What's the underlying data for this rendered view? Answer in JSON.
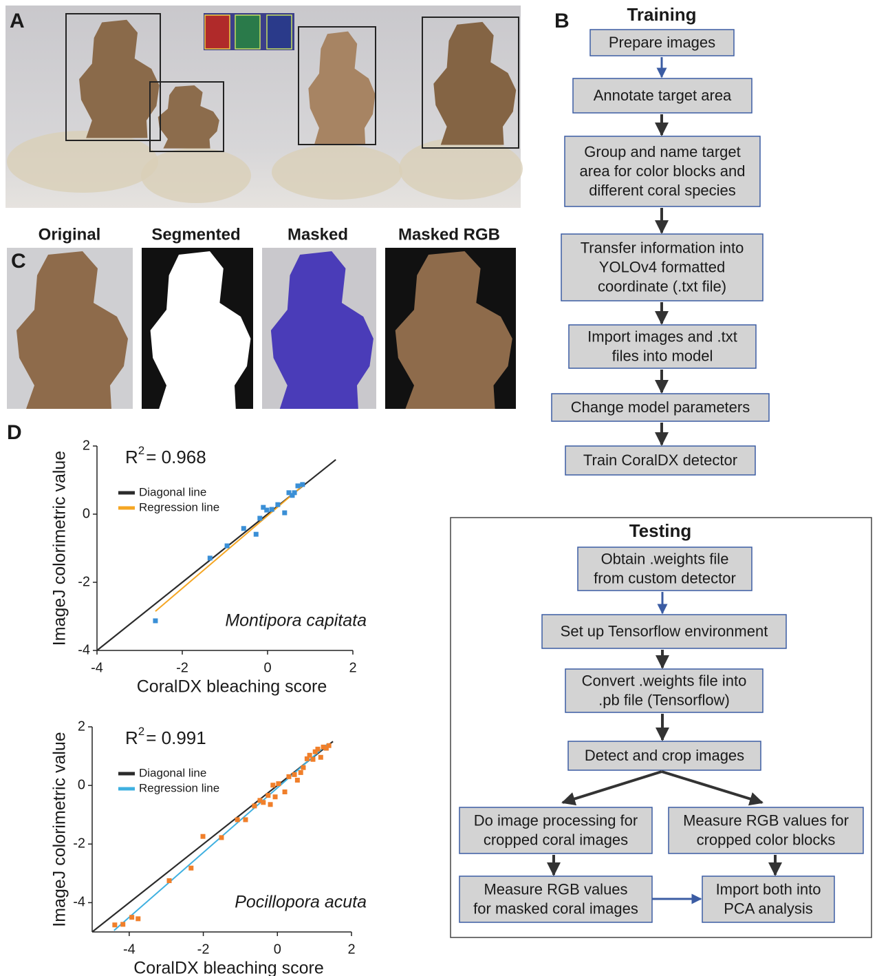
{
  "panels": {
    "a": "A",
    "b": "B",
    "c": "C",
    "d": "D"
  },
  "segmentation": {
    "titles": [
      "Original",
      "Segmented",
      "Masked",
      "Masked RGB"
    ]
  },
  "training": {
    "title": "Training",
    "steps": [
      [
        "Prepare images"
      ],
      [
        "Annotate target  area"
      ],
      [
        "Group and name target",
        "area for color blocks and",
        "different coral species"
      ],
      [
        "Transfer information into",
        "YOLOv4 formatted",
        "coordinate (.txt file)"
      ],
      [
        "Import images and .txt",
        "files into model"
      ],
      [
        "Change model parameters"
      ],
      [
        "Train CoralDX detector"
      ]
    ]
  },
  "testing": {
    "title": "Testing",
    "steps": [
      [
        "Obtain .weights file",
        "from custom detector"
      ],
      [
        "Set up Tensorflow environment"
      ],
      [
        "Convert .weights file into",
        ".pb file (Tensorflow)"
      ],
      [
        "Detect and crop images"
      ],
      [
        "Do image processing for",
        "cropped coral images"
      ],
      [
        "Measure RGB values for",
        "cropped color blocks"
      ],
      [
        "Measure RGB values",
        "for masked coral images"
      ],
      [
        "Import both into",
        "PCA analysis"
      ]
    ]
  },
  "chart_data": [
    {
      "type": "scatter",
      "annotation": [
        "R",
        "2",
        "= 0.968"
      ],
      "species": "Montipora capitata",
      "xlabel": "CoralDX bleaching score",
      "ylabel": "ImageJ colorimetric value",
      "xlim": [
        -4,
        2
      ],
      "ylim": [
        -4,
        2
      ],
      "xticks": [
        -4,
        -2,
        0,
        2
      ],
      "yticks": [
        -4,
        -2,
        0,
        2
      ],
      "points": {
        "color": "#3a8fd6",
        "x": [
          -2.63,
          -1.35,
          -0.95,
          -0.56,
          -0.27,
          -0.18,
          -0.1,
          -0.02,
          0.1,
          0.24,
          0.4,
          0.5,
          0.58,
          0.63,
          0.71,
          0.82
        ],
        "values": [
          -3.13,
          -1.29,
          -0.93,
          -0.42,
          -0.59,
          -0.12,
          0.2,
          0.12,
          0.14,
          0.28,
          0.04,
          0.63,
          0.55,
          0.63,
          0.83,
          0.87
        ]
      },
      "series": [
        {
          "name": "Diagonal line",
          "color": "#2b2b2b",
          "x": [
            -4,
            1.6
          ],
          "values": [
            -4,
            1.6
          ]
        },
        {
          "name": "Regression line",
          "color": "#f5a623",
          "x": [
            -2.63,
            0.82
          ],
          "values": [
            -2.85,
            0.83
          ]
        }
      ]
    },
    {
      "type": "scatter",
      "annotation": [
        "R",
        "2",
        "= 0.991"
      ],
      "species": "Pocillopora acuta",
      "xlabel": "CoralDX bleaching score",
      "ylabel": "ImageJ colorimetric value",
      "xlim": [
        -5,
        2
      ],
      "ylim": [
        -5,
        2
      ],
      "xticks": [
        -4,
        -2,
        0,
        2
      ],
      "yticks": [
        -4,
        -2,
        0,
        2
      ],
      "points": {
        "color": "#f07f2a",
        "x": [
          -4.39,
          -4.17,
          -3.93,
          -3.76,
          -2.92,
          -2.33,
          -2.01,
          -1.51,
          -1.08,
          -0.86,
          -0.62,
          -0.47,
          -0.38,
          -0.25,
          -0.19,
          -0.12,
          -0.06,
          0.03,
          0.2,
          0.31,
          0.46,
          0.54,
          0.63,
          0.7,
          0.8,
          0.87,
          0.96,
          1.02,
          1.09,
          1.17,
          1.24,
          1.32,
          1.39
        ],
        "values": [
          -4.76,
          -4.74,
          -4.5,
          -4.55,
          -3.25,
          -2.82,
          -1.74,
          -1.78,
          -1.17,
          -1.17,
          -0.7,
          -0.51,
          -0.58,
          -0.34,
          -0.65,
          0.01,
          -0.39,
          0.06,
          -0.22,
          0.3,
          0.37,
          0.18,
          0.44,
          0.61,
          0.91,
          1.03,
          0.89,
          1.15,
          1.24,
          0.96,
          1.31,
          1.27,
          1.36
        ]
      },
      "series": [
        {
          "name": "Diagonal line",
          "color": "#2b2b2b",
          "x": [
            -5,
            1.5
          ],
          "values": [
            -5,
            1.5
          ]
        },
        {
          "name": "Regression line",
          "color": "#3fb0e0",
          "x": [
            -4.41,
            1.37
          ],
          "values": [
            -4.95,
            1.43
          ]
        }
      ]
    }
  ]
}
